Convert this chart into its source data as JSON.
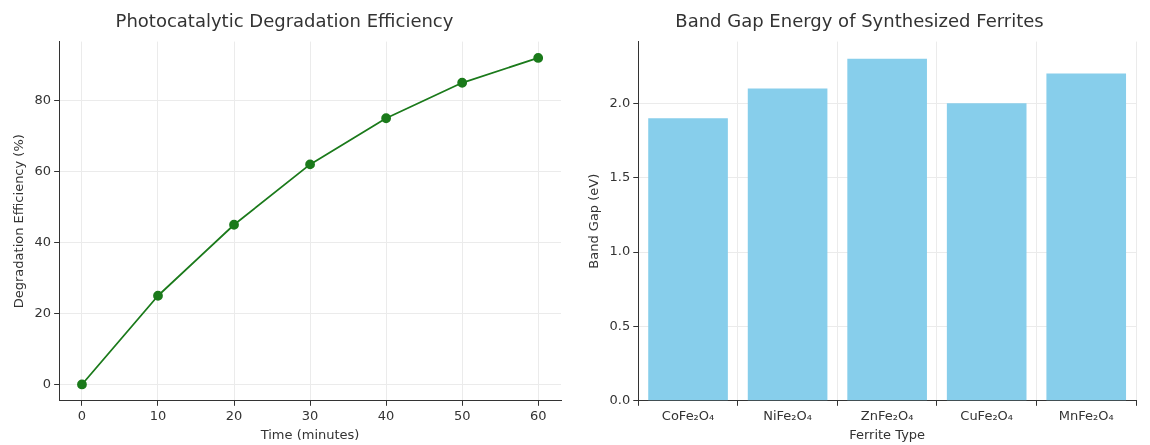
{
  "chart_data": [
    {
      "type": "line",
      "title": "Photocatalytic Degradation Efficiency",
      "xlabel": "Time (minutes)",
      "ylabel": "Degradation Efficiency (%)",
      "x": [
        0,
        10,
        20,
        30,
        40,
        50,
        60
      ],
      "series": [
        {
          "color": "#1b7a1b",
          "values": [
            0,
            25,
            45,
            62,
            75,
            85,
            92
          ]
        }
      ],
      "xlim": [
        -3,
        63
      ],
      "xticks": [
        0,
        10,
        20,
        30,
        40,
        50,
        60
      ],
      "ylim": [
        -4.6,
        96.6
      ],
      "yticks": [
        0,
        20,
        40,
        60,
        80
      ],
      "grid": true,
      "marker": "circle",
      "line_style": "solid"
    },
    {
      "type": "bar",
      "title": "Band Gap Energy of Synthesized Ferrites",
      "xlabel": "Ferrite Type",
      "ylabel": "Band Gap (eV)",
      "categories": [
        "CoFe₂O₄",
        "NiFe₂O₄",
        "ZnFe₂O₄",
        "CuFe₂O₄",
        "MnFe₂O₄"
      ],
      "values": [
        1.9,
        2.1,
        2.3,
        2.0,
        2.2
      ],
      "color": "#87ceeb",
      "ylim": [
        0,
        2.415
      ],
      "yticks": [
        {
          "value": 0,
          "label": "0.0"
        },
        0.5,
        {
          "value": 1,
          "label": "1.0"
        },
        1.5,
        {
          "value": 2,
          "label": "2.0"
        }
      ],
      "grid": true
    }
  ]
}
